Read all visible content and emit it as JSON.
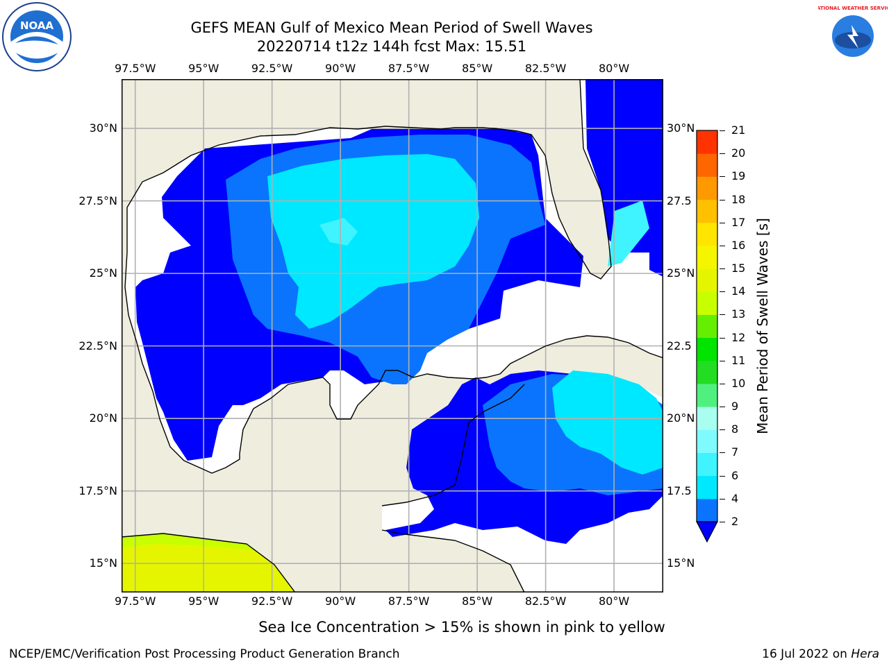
{
  "header": {
    "title_line1": "GEFS MEAN Gulf of Mexico Mean Period of Swell Waves",
    "title_line2": "20220714 t12z 144h fcst   Max: 15.51"
  },
  "logos": {
    "left": {
      "icon": "noaa-logo",
      "text": "NOAA"
    },
    "right": {
      "icon": "nws-logo",
      "text": "NATIONAL WEATHER SERVICE"
    }
  },
  "map": {
    "lon_ticks": [
      "97.5°W",
      "95°W",
      "92.5°W",
      "90°W",
      "87.5°W",
      "85°W",
      "82.5°W",
      "80°W"
    ],
    "lat_ticks_left": [
      "30°N",
      "27.5°N",
      "25°N",
      "22.5°N",
      "20°N",
      "17.5°N",
      "15°N"
    ],
    "lat_ticks_right": [
      "30°N",
      "27.5",
      "25°N",
      "22.5",
      "20°N",
      "17.5",
      "15°N"
    ],
    "extent": {
      "lon_min": -98,
      "lon_max": -78.2,
      "lat_min": 14.0,
      "lat_max": 31.7
    },
    "colors": {
      "land": "#efedde",
      "unsampled_water": "#ffffff",
      "grid": "#b0b0b0",
      "coast": "#000000"
    }
  },
  "colorbar": {
    "label": "Mean Period of Swell Waves [s]",
    "tick_labels": [
      "21",
      "20",
      "19",
      "18",
      "17",
      "16",
      "15",
      "14",
      "13",
      "12",
      "11",
      "10",
      "9",
      "8",
      "7",
      "6",
      "4",
      "2"
    ],
    "levels": [
      2,
      4,
      6,
      7,
      8,
      9,
      10,
      11,
      12,
      13,
      14,
      15,
      16,
      17,
      18,
      19,
      20,
      21
    ],
    "colors": [
      "#0a74ff",
      "#00e8ff",
      "#3ff3ff",
      "#7ffbff",
      "#a8fff0",
      "#50f080",
      "#22dd22",
      "#00e400",
      "#66ee00",
      "#c8ff00",
      "#e5f500",
      "#f5f500",
      "#ffe500",
      "#ffc000",
      "#ff9900",
      "#ff6600",
      "#ff3300"
    ],
    "extend_color": "#0000ff"
  },
  "caption": "Sea Ice Concentration > 15% is shown in pink to yellow",
  "footer": {
    "left": "NCEP/EMC/Verification Post Processing Product Generation Branch",
    "right_prefix": "16 Jul 2022 on ",
    "right_host": "Hera"
  }
}
